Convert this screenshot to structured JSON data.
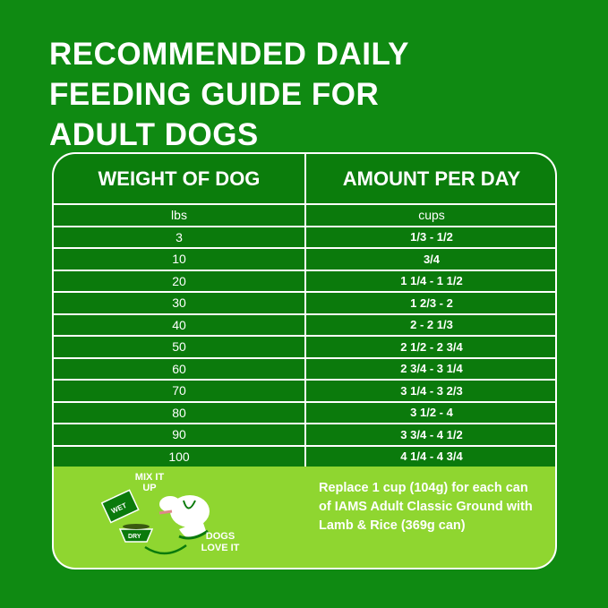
{
  "title_lines": [
    "RECOMMENDED DAILY",
    "FEEDING GUIDE FOR",
    "ADULT DOGS"
  ],
  "table": {
    "headers": [
      "WEIGHT OF DOG",
      "AMOUNT PER DAY"
    ],
    "units": [
      "lbs",
      "cups"
    ],
    "rows": [
      {
        "weight": "3",
        "amount": "1/3 - 1/2"
      },
      {
        "weight": "10",
        "amount": "3/4"
      },
      {
        "weight": "20",
        "amount": "1 1/4 - 1 1/2"
      },
      {
        "weight": "30",
        "amount": "1 2/3 - 2"
      },
      {
        "weight": "40",
        "amount": "2 - 2 1/3"
      },
      {
        "weight": "50",
        "amount": "2 1/2 - 2 3/4"
      },
      {
        "weight": "60",
        "amount": "2 3/4 - 3 1/4"
      },
      {
        "weight": "70",
        "amount": "3 1/4 - 3 2/3"
      },
      {
        "weight": "80",
        "amount": "3 1/2 - 4"
      },
      {
        "weight": "90",
        "amount": "3 3/4 - 4 1/2"
      },
      {
        "weight": "100",
        "amount": "4 1/4 - 4 3/4"
      }
    ]
  },
  "footer": {
    "mix_label": "MIX IT UP",
    "wet_label": "WET",
    "dry_label": "DRY",
    "love_label": "DOGS LOVE IT",
    "note": "Replace 1 cup (104g) for each can of IAMS Adult Classic Ground with Lamb & Rice (369g can)"
  },
  "colors": {
    "background": "#0f8a12",
    "row": "#0b7a0c",
    "footer": "#8fd630"
  }
}
